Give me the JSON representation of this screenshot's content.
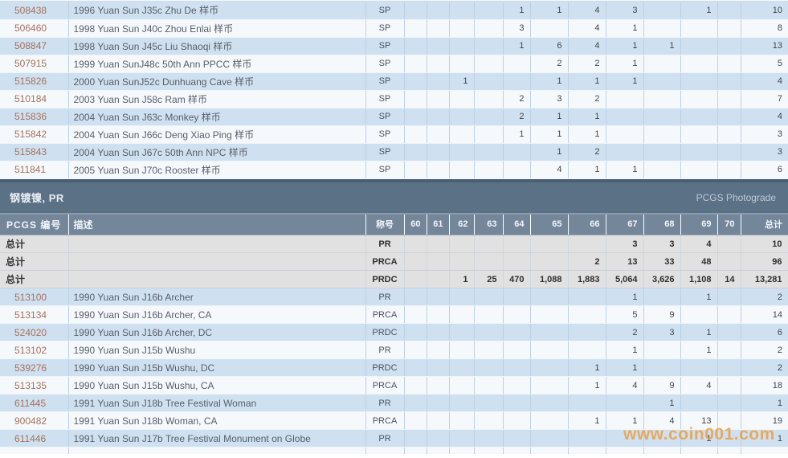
{
  "grade_headers": [
    "60",
    "61",
    "62",
    "63",
    "64",
    "65",
    "66",
    "67",
    "68",
    "69",
    "70"
  ],
  "top_table": {
    "designation_all": "SP",
    "rows": [
      {
        "id": "508438",
        "desc": "1996 Yuan Sun J35c Zhu De 样币",
        "designation": "SP",
        "grades": [
          "",
          "",
          "",
          "",
          "1",
          "1",
          "4",
          "3",
          "",
          "1",
          ""
        ],
        "total": "10"
      },
      {
        "id": "506460",
        "desc": "1998 Yuan Sun J40c Zhou Enlai 样币",
        "designation": "SP",
        "grades": [
          "",
          "",
          "",
          "",
          "3",
          "",
          "4",
          "1",
          "",
          "",
          ""
        ],
        "total": "8"
      },
      {
        "id": "508847",
        "desc": "1998 Yuan Sun J45c Liu Shaoqi 样币",
        "designation": "SP",
        "grades": [
          "",
          "",
          "",
          "",
          "1",
          "6",
          "4",
          "1",
          "1",
          "",
          ""
        ],
        "total": "13"
      },
      {
        "id": "507915",
        "desc": "1999 Yuan SunJ48c 50th Ann PPCC 样币",
        "designation": "SP",
        "grades": [
          "",
          "",
          "",
          "",
          "",
          "2",
          "2",
          "1",
          "",
          "",
          ""
        ],
        "total": "5"
      },
      {
        "id": "515826",
        "desc": "2000 Yuan SunJ52c Dunhuang Cave 样币",
        "designation": "SP",
        "grades": [
          "",
          "",
          "1",
          "",
          "",
          "1",
          "1",
          "1",
          "",
          "",
          ""
        ],
        "total": "4"
      },
      {
        "id": "510184",
        "desc": "2003 Yuan Sun J58c Ram 样币",
        "designation": "SP",
        "grades": [
          "",
          "",
          "",
          "",
          "2",
          "3",
          "2",
          "",
          "",
          "",
          ""
        ],
        "total": "7"
      },
      {
        "id": "515836",
        "desc": "2004 Yuan Sun J63c Monkey 样币",
        "designation": "SP",
        "grades": [
          "",
          "",
          "",
          "",
          "2",
          "1",
          "1",
          "",
          "",
          "",
          ""
        ],
        "total": "4"
      },
      {
        "id": "515842",
        "desc": "2004 Yuan Sun J66c Deng Xiao Ping 样币",
        "designation": "SP",
        "grades": [
          "",
          "",
          "",
          "",
          "1",
          "1",
          "1",
          "",
          "",
          "",
          ""
        ],
        "total": "3"
      },
      {
        "id": "515843",
        "desc": "2004 Yuan Sun J67c 50th Ann NPC 样币",
        "designation": "SP",
        "grades": [
          "",
          "",
          "",
          "",
          "",
          "1",
          "2",
          "",
          "",
          "",
          ""
        ],
        "total": "3"
      },
      {
        "id": "511841",
        "desc": "2005 Yuan Sun J70c Rooster 样币",
        "designation": "SP",
        "grades": [
          "",
          "",
          "",
          "",
          "",
          "4",
          "1",
          "1",
          "",
          "",
          ""
        ],
        "total": "6"
      }
    ]
  },
  "section": {
    "title": "钢镀镍, PR",
    "photograde_label": "PCGS Photograde"
  },
  "bottom_table": {
    "headers": {
      "id": "PCGS 编号",
      "desc": "描述",
      "designation": "称号",
      "total": "总计"
    },
    "rows": [
      {
        "id": "总计",
        "desc": "",
        "designation": "PR",
        "grades": [
          "",
          "",
          "",
          "",
          "",
          "",
          "",
          "3",
          "3",
          "4",
          ""
        ],
        "total": "10",
        "is_total": true
      },
      {
        "id": "总计",
        "desc": "",
        "designation": "PRCA",
        "grades": [
          "",
          "",
          "",
          "",
          "",
          "",
          "2",
          "13",
          "33",
          "48",
          ""
        ],
        "total": "96",
        "is_total": true
      },
      {
        "id": "总计",
        "desc": "",
        "designation": "PRDC",
        "grades": [
          "",
          "",
          "1",
          "25",
          "470",
          "1,088",
          "1,883",
          "5,064",
          "3,626",
          "1,108",
          "14"
        ],
        "total": "13,281",
        "is_total": true
      },
      {
        "id": "513100",
        "desc": "1990 Yuan Sun J16b Archer",
        "designation": "PR",
        "grades": [
          "",
          "",
          "",
          "",
          "",
          "",
          "",
          "1",
          "",
          "1",
          ""
        ],
        "total": "2",
        "is_total": false
      },
      {
        "id": "513134",
        "desc": "1990 Yuan Sun J16b Archer, CA",
        "designation": "PRCA",
        "grades": [
          "",
          "",
          "",
          "",
          "",
          "",
          "",
          "5",
          "9",
          "",
          ""
        ],
        "total": "14",
        "is_total": false
      },
      {
        "id": "524020",
        "desc": "1990 Yuan Sun J16b Archer, DC",
        "designation": "PRDC",
        "grades": [
          "",
          "",
          "",
          "",
          "",
          "",
          "",
          "2",
          "3",
          "1",
          ""
        ],
        "total": "6",
        "is_total": false
      },
      {
        "id": "513102",
        "desc": "1990 Yuan Sun J15b Wushu",
        "designation": "PR",
        "grades": [
          "",
          "",
          "",
          "",
          "",
          "",
          "",
          "1",
          "",
          "1",
          ""
        ],
        "total": "2",
        "is_total": false
      },
      {
        "id": "539276",
        "desc": "1990 Yuan Sun J15b Wushu, DC",
        "designation": "PRDC",
        "grades": [
          "",
          "",
          "",
          "",
          "",
          "",
          "1",
          "1",
          "",
          "",
          ""
        ],
        "total": "2",
        "is_total": false
      },
      {
        "id": "513135",
        "desc": "1990 Yuan Sun J15b Wushu, CA",
        "designation": "PRCA",
        "grades": [
          "",
          "",
          "",
          "",
          "",
          "",
          "1",
          "4",
          "9",
          "4",
          ""
        ],
        "total": "18",
        "is_total": false
      },
      {
        "id": "611445",
        "desc": "1991 Yuan Sun J18b Tree Festival Woman",
        "designation": "PR",
        "grades": [
          "",
          "",
          "",
          "",
          "",
          "",
          "",
          "",
          "1",
          "",
          ""
        ],
        "total": "1",
        "is_total": false
      },
      {
        "id": "900482",
        "desc": "1991 Yuan Sun J18b Woman, CA",
        "designation": "PRCA",
        "grades": [
          "",
          "",
          "",
          "",
          "",
          "",
          "1",
          "1",
          "4",
          "13",
          ""
        ],
        "total": "19",
        "is_total": false
      },
      {
        "id": "611446",
        "desc": "1991 Yuan Sun J17b Tree Festival Monument on Globe",
        "designation": "PR",
        "grades": [
          "",
          "",
          "",
          "",
          "",
          "",
          "",
          "",
          "",
          "1",
          ""
        ],
        "total": "1",
        "is_total": false
      }
    ]
  },
  "watermark": "www.coin001.com",
  "colors": {
    "row_blue": "#cfe1f0",
    "row_white": "#f6f9fc",
    "totals_row_bg": "#e1e1e1",
    "section_band_bg": "#5b7186",
    "header_row_bg": "#73869a",
    "divider": "#4b5e71",
    "pcgs_number_link": "#a7705a",
    "watermark_orange": "#f09a36"
  }
}
